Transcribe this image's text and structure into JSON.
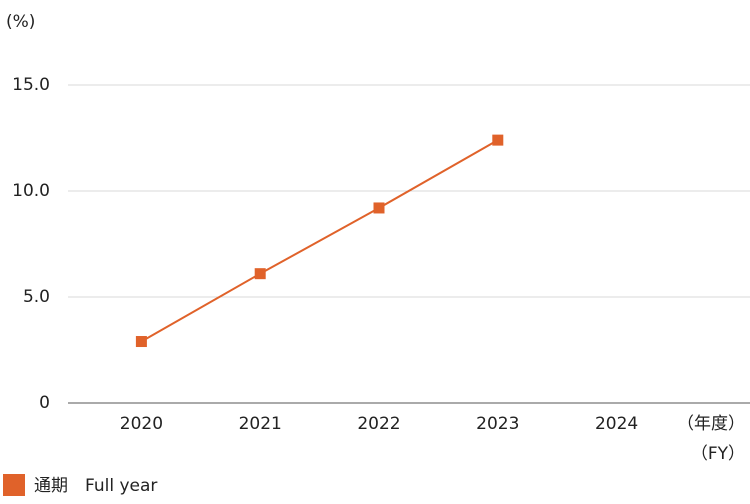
{
  "chart_data": {
    "type": "line",
    "unit_label": "(%)",
    "x_label": "（年度）",
    "x_label_en": "（FY）",
    "categories": [
      "2020",
      "2021",
      "2022",
      "2023",
      "2024"
    ],
    "series": [
      {
        "name": "通期　Full year",
        "color": "#e0622a",
        "values": [
          2.9,
          6.1,
          9.2,
          12.4,
          null
        ]
      }
    ],
    "ylim": [
      0,
      15
    ],
    "yticks": [
      0,
      {
        "value": 5,
        "label": "5.0"
      },
      {
        "value": 10,
        "label": "10.0"
      },
      {
        "value": 15,
        "label": "15.0"
      }
    ],
    "grid": true
  }
}
